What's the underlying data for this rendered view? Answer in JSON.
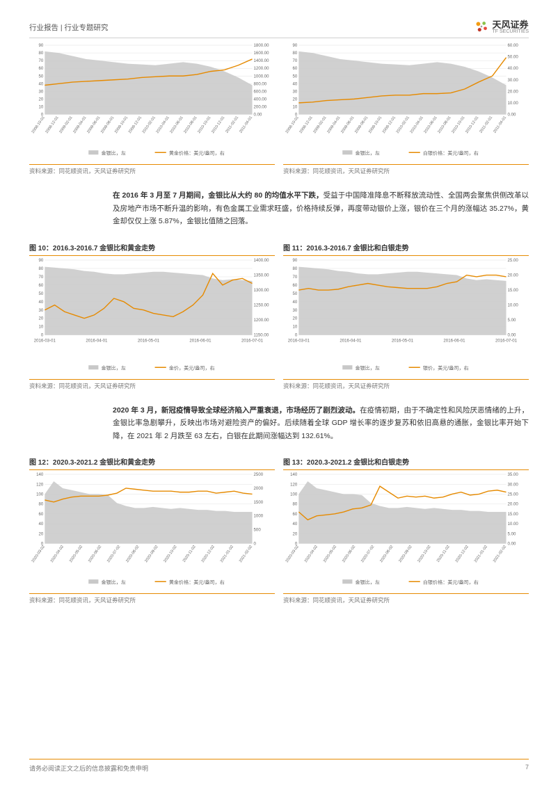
{
  "header": {
    "title": "行业报告 | 行业专题研究",
    "logo_cn": "天风证券",
    "logo_en": "TF SECURITIES"
  },
  "footer": {
    "disclaimer": "请务必阅读正文之后的信息披露和免责申明",
    "page": "7"
  },
  "para1_bold": "在 2016 年 3 月至 7 月期间，金银比从大约 80 的均值水平下跌，",
  "para1_rest": "受益于中国降准降息不断释放流动性、全国两会聚焦供侧改革以及房地产市场不断升温的影响，有色金属工业需求旺盛，价格持续反弹，再度带动银价上涨，银价在三个月的涨幅达 35.27%，黄金却仅仅上涨 5.87%，金银比值随之回落。",
  "para2_bold": "2020 年 3 月，新冠疫情导致全球经济陷入严重衰退，市场经历了剧烈波动。",
  "para2_rest": "在疫情初期，由于不确定性和风险厌恶情绪的上升，金银比率急剧攀升，反映出市场对避险资产的偏好。后续随着全球 GDP 增长率的逐步复苏和依旧高悬的通胀，金银比率开始下降，在 2021 年 2 月跌至 63 左右，白银在此期间涨幅达到 132.61%。",
  "source_text": "资料来源：同花顺资讯，天风证券研究所",
  "legend_ratio": "金银比，左",
  "legend_gold": "黄金价格：美元/盎司，右",
  "legend_gold2": "金价，美元/盎司，右",
  "legend_silver": "白银价格：美元/盎司，右",
  "legend_silver2": "银价，美元/盎司，右",
  "charts": {
    "c8": {
      "type": "dual-axis-line-area",
      "left_ticks": [
        0,
        10,
        20,
        30,
        40,
        50,
        60,
        70,
        80,
        90
      ],
      "right_ticks": [
        "0.00",
        "200.00",
        "400.00",
        "600.00",
        "800.00",
        "1000.00",
        "1200.00",
        "1400.00",
        "1600.00",
        "1800.00"
      ],
      "x_labels": [
        "2008-10-01",
        "2008-12-01",
        "2009-02-01",
        "2009-04-01",
        "2009-06-01",
        "2009-08-01",
        "2009-10-01",
        "2009-12-01",
        "2010-02-01",
        "2010-04-01",
        "2010-06-01",
        "2010-08-01",
        "2010-10-01",
        "2010-12-01",
        "2011-02-01",
        "2011-04-01"
      ],
      "area_y": [
        82,
        80,
        76,
        72,
        70,
        68,
        66,
        65,
        64,
        66,
        68,
        66,
        62,
        56,
        48,
        38
      ],
      "line_y": [
        38,
        40,
        42,
        43,
        44,
        45,
        46,
        48,
        49,
        50,
        50,
        52,
        56,
        58,
        64,
        72
      ],
      "left_max": 90,
      "right_max_map": 90,
      "area_color": "#c8c8c8",
      "line_color": "#e68a00",
      "grid_color": "#e0e0e0",
      "bg": "#ffffff"
    },
    "c9": {
      "type": "dual-axis-line-area",
      "left_ticks": [
        0,
        10,
        20,
        30,
        40,
        50,
        60,
        70,
        80,
        90
      ],
      "right_ticks": [
        "0.00",
        "10.00",
        "20.00",
        "30.00",
        "40.00",
        "50.00",
        "60.00"
      ],
      "x_labels": [
        "2008-10-01",
        "2008-12-01",
        "2009-02-01",
        "2009-04-01",
        "2009-06-01",
        "2009-08-01",
        "2009-10-01",
        "2009-12-01",
        "2010-02-01",
        "2010-04-01",
        "2010-06-01",
        "2010-08-01",
        "2010-10-01",
        "2010-12-01",
        "2011-02-01",
        "2011-04-01"
      ],
      "area_y": [
        82,
        80,
        76,
        72,
        70,
        68,
        66,
        65,
        64,
        66,
        68,
        66,
        62,
        56,
        48,
        38
      ],
      "line_y": [
        15,
        16,
        18,
        19,
        20,
        22,
        24,
        25,
        25,
        27,
        27,
        28,
        33,
        42,
        50,
        74
      ],
      "left_max": 90,
      "right_max_map": 90,
      "area_color": "#c8c8c8",
      "line_color": "#e68a00",
      "grid_color": "#e0e0e0",
      "bg": "#ffffff"
    },
    "c10": {
      "title": "图 10：2016.3-2016.7 金银比和黄金走势",
      "type": "dual-axis-line-area",
      "left_ticks": [
        0,
        10,
        20,
        30,
        40,
        50,
        60,
        70,
        80,
        90
      ],
      "right_ticks": [
        "1150.00",
        "1200.00",
        "1250.00",
        "1300.00",
        "1350.00",
        "1400.00"
      ],
      "x_labels": [
        "2016-03-01",
        "2016-04-01",
        "2016-05-01",
        "2016-06-01",
        "2016-07-01"
      ],
      "area_y": [
        82,
        81,
        80,
        79,
        77,
        76,
        74,
        73,
        73,
        74,
        75,
        76,
        76,
        75,
        74,
        73,
        72,
        68,
        66,
        67,
        66,
        65
      ],
      "line_y": [
        30,
        36,
        28,
        24,
        20,
        24,
        32,
        44,
        40,
        32,
        30,
        26,
        24,
        22,
        28,
        36,
        48,
        74,
        60,
        66,
        68,
        62
      ],
      "left_max": 90,
      "right_max_map": 90,
      "area_color": "#c8c8c8",
      "line_color": "#e68a00",
      "grid_color": "#e0e0e0",
      "bg": "#ffffff"
    },
    "c11": {
      "title": "图 11：2016.3-2016.7 金银比和白银走势",
      "type": "dual-axis-line-area",
      "left_ticks": [
        0,
        10,
        20,
        30,
        40,
        50,
        60,
        70,
        80,
        90
      ],
      "right_ticks": [
        "0.00",
        "5.00",
        "10.00",
        "15.00",
        "20.00",
        "25.00"
      ],
      "x_labels": [
        "2016-03-01",
        "2016-04-01",
        "2016-05-01",
        "2016-06-01",
        "2016-07-01"
      ],
      "area_y": [
        82,
        81,
        80,
        79,
        77,
        76,
        74,
        73,
        73,
        74,
        75,
        76,
        76,
        75,
        74,
        73,
        72,
        68,
        66,
        67,
        66,
        65
      ],
      "line_y": [
        54,
        56,
        54,
        54,
        55,
        58,
        60,
        62,
        60,
        58,
        57,
        56,
        56,
        56,
        58,
        62,
        64,
        72,
        70,
        72,
        72,
        70
      ],
      "left_max": 90,
      "right_max_map": 90,
      "area_color": "#c8c8c8",
      "line_color": "#e68a00",
      "grid_color": "#e0e0e0",
      "bg": "#ffffff"
    },
    "c12": {
      "title": "图 12：2020.3-2021.2 金银比和黄金走势",
      "type": "dual-axis-line-area",
      "left_ticks": [
        0,
        20,
        40,
        60,
        80,
        100,
        120,
        140
      ],
      "right_ticks": [
        "0",
        "500",
        "1000",
        "1500",
        "2000",
        "2500"
      ],
      "x_labels": [
        "2020-03-02",
        "2020-04-02",
        "2020-05-02",
        "2020-06-02",
        "2020-07-02",
        "2020-08-02",
        "2020-09-02",
        "2020-10-02",
        "2020-11-02",
        "2020-12-02",
        "2021-01-02",
        "2021-02-02"
      ],
      "area_y": [
        100,
        126,
        112,
        108,
        104,
        100,
        100,
        98,
        82,
        76,
        72,
        72,
        74,
        72,
        70,
        72,
        70,
        68,
        68,
        66,
        66,
        64,
        64,
        64
      ],
      "line_y": [
        88,
        84,
        90,
        94,
        96,
        96,
        96,
        98,
        102,
        112,
        110,
        108,
        106,
        106,
        106,
        104,
        104,
        106,
        106,
        102,
        104,
        106,
        102,
        100
      ],
      "left_max": 140,
      "right_max_map": 140,
      "area_color": "#c8c8c8",
      "line_color": "#e68a00",
      "grid_color": "#e0e0e0",
      "bg": "#ffffff"
    },
    "c13": {
      "title": "图 13：2020.3-2021.2 金银比和白银走势",
      "type": "dual-axis-line-area",
      "left_ticks": [
        0,
        20,
        40,
        60,
        80,
        100,
        120,
        140
      ],
      "right_ticks": [
        "0.00",
        "5.00",
        "10.00",
        "15.00",
        "20.00",
        "25.00",
        "30.00",
        "35.00"
      ],
      "x_labels": [
        "2020-03-02",
        "2020-04-02",
        "2020-05-02",
        "2020-06-02",
        "2020-07-02",
        "2020-08-02",
        "2020-09-02",
        "2020-10-02",
        "2020-11-02",
        "2020-12-02",
        "2021-01-02",
        "2021-02-02"
      ],
      "area_y": [
        100,
        126,
        112,
        108,
        104,
        100,
        100,
        98,
        82,
        76,
        72,
        72,
        74,
        72,
        70,
        72,
        70,
        68,
        68,
        66,
        66,
        64,
        64,
        64
      ],
      "line_y": [
        64,
        48,
        56,
        58,
        60,
        64,
        70,
        72,
        78,
        116,
        104,
        92,
        96,
        94,
        96,
        92,
        94,
        100,
        104,
        98,
        100,
        106,
        108,
        104
      ],
      "left_max": 140,
      "right_max_map": 140,
      "area_color": "#c8c8c8",
      "line_color": "#e68a00",
      "grid_color": "#e0e0e0",
      "bg": "#ffffff"
    }
  }
}
